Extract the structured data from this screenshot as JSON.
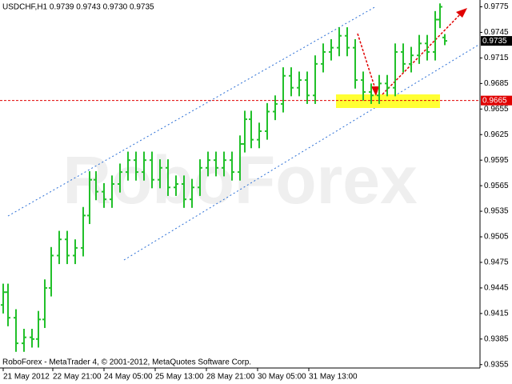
{
  "chart_data": {
    "type": "ohlc",
    "title": "USDCHF,H1  0.9739 0.9743 0.9730 0.9735",
    "footer": "RoboForex - MetaTrader 4, © 2001-2012, MetaQuotes Software Corp.",
    "watermark": "RoboForex",
    "color": "#22c02a",
    "x": [
      0,
      3,
      8,
      13,
      18,
      22,
      26,
      30,
      35,
      40,
      45,
      50,
      54,
      58,
      63,
      68,
      73,
      78,
      83,
      88,
      93,
      98,
      103,
      108,
      113,
      118,
      123,
      128,
      133,
      138,
      143,
      148,
      151,
      155,
      160,
      165,
      170,
      175,
      180,
      185,
      190,
      195,
      200,
      205,
      210,
      215,
      220,
      225,
      230,
      235,
      240,
      245,
      250,
      255,
      260,
      265,
      270,
      273,
      276
    ],
    "open": [
      0.9425,
      0.944,
      0.941,
      0.938,
      0.9387,
      0.9385,
      0.9408,
      0.9445,
      0.9483,
      0.9502,
      0.9483,
      0.9492,
      0.953,
      0.9572,
      0.9558,
      0.9549,
      0.9567,
      0.9581,
      0.9595,
      0.9581,
      0.9595,
      0.9572,
      0.9586,
      0.9563,
      0.9567,
      0.9549,
      0.9563,
      0.9586,
      0.9595,
      0.9586,
      0.9595,
      0.9581,
      0.9614,
      0.9643,
      0.9619,
      0.9629,
      0.9652,
      0.9661,
      0.9694,
      0.968,
      0.9689,
      0.9671,
      0.9708,
      0.9722,
      0.9727,
      0.9741,
      0.9727,
      0.9689,
      0.9675,
      0.9671,
      0.9685,
      0.968,
      0.9722,
      0.9708,
      0.9718,
      0.9732,
      0.9722,
      0.976,
      0.9739
    ],
    "high": [
      0.945,
      0.945,
      0.942,
      0.9397,
      0.9397,
      0.9418,
      0.9455,
      0.9493,
      0.9512,
      0.9512,
      0.9502,
      0.954,
      0.9582,
      0.9582,
      0.9568,
      0.9577,
      0.9591,
      0.9605,
      0.9605,
      0.9605,
      0.9605,
      0.9596,
      0.9596,
      0.9577,
      0.9577,
      0.9573,
      0.9596,
      0.9605,
      0.9605,
      0.9605,
      0.9605,
      0.9624,
      0.9653,
      0.9653,
      0.9639,
      0.9662,
      0.9671,
      0.9704,
      0.9704,
      0.9699,
      0.9699,
      0.9718,
      0.9732,
      0.9737,
      0.9751,
      0.9751,
      0.9737,
      0.9699,
      0.9685,
      0.9695,
      0.9695,
      0.9732,
      0.9732,
      0.9728,
      0.9742,
      0.9742,
      0.977,
      0.9779,
      0.9743
    ],
    "low": [
      0.9415,
      0.94,
      0.937,
      0.937,
      0.9375,
      0.9375,
      0.9398,
      0.9435,
      0.9473,
      0.9473,
      0.9473,
      0.9482,
      0.952,
      0.9548,
      0.9539,
      0.9539,
      0.9557,
      0.9571,
      0.9571,
      0.9571,
      0.9562,
      0.9562,
      0.9553,
      0.9553,
      0.9539,
      0.9539,
      0.9553,
      0.9576,
      0.9576,
      0.9576,
      0.9571,
      0.9571,
      0.9604,
      0.9609,
      0.9609,
      0.9619,
      0.9642,
      0.9651,
      0.967,
      0.967,
      0.9661,
      0.9661,
      0.9698,
      0.9712,
      0.9717,
      0.9717,
      0.9679,
      0.9665,
      0.9661,
      0.9661,
      0.967,
      0.967,
      0.9698,
      0.9698,
      0.9708,
      0.9712,
      0.9712,
      0.975,
      0.973
    ],
    "close": [
      0.944,
      0.941,
      0.938,
      0.9387,
      0.9385,
      0.9408,
      0.9445,
      0.9483,
      0.9502,
      0.9483,
      0.9492,
      0.953,
      0.9572,
      0.9558,
      0.9549,
      0.9567,
      0.9581,
      0.9595,
      0.9581,
      0.9595,
      0.9572,
      0.9586,
      0.9563,
      0.9567,
      0.9549,
      0.9563,
      0.9586,
      0.9595,
      0.9586,
      0.9595,
      0.9581,
      0.9614,
      0.9643,
      0.9619,
      0.9629,
      0.9652,
      0.9661,
      0.9694,
      0.968,
      0.9689,
      0.9671,
      0.9708,
      0.9722,
      0.9727,
      0.9741,
      0.9727,
      0.9689,
      0.9675,
      0.9671,
      0.9685,
      0.968,
      0.9722,
      0.9708,
      0.9718,
      0.9732,
      0.9722,
      0.976,
      0.9775,
      0.9735
    ],
    "xlim": [
      -2,
      298
    ],
    "xticks": [
      {
        "value": 0,
        "label": "21 May 2012"
      },
      {
        "value": 31,
        "label": "22 May 21:00"
      },
      {
        "value": 63,
        "label": "24 May 05:00"
      },
      {
        "value": 95,
        "label": "25 May 13:00"
      },
      {
        "value": 127,
        "label": "28 May 21:00"
      },
      {
        "value": 159,
        "label": "30 May 05:00"
      },
      {
        "value": 191,
        "label": "31 May 13:00"
      }
    ],
    "ylim": [
      0.9351,
      0.9783
    ],
    "yticks": [
      0.9775,
      0.9745,
      0.9715,
      0.9685,
      0.9655,
      0.9625,
      0.9595,
      0.9565,
      0.9535,
      0.9505,
      0.9475,
      0.9445,
      0.9415,
      0.9385,
      0.9355
    ],
    "level_line": {
      "value": 0.9665,
      "color": "#e00000"
    },
    "current_price": {
      "value": 0.9735,
      "color": "#000000"
    }
  }
}
